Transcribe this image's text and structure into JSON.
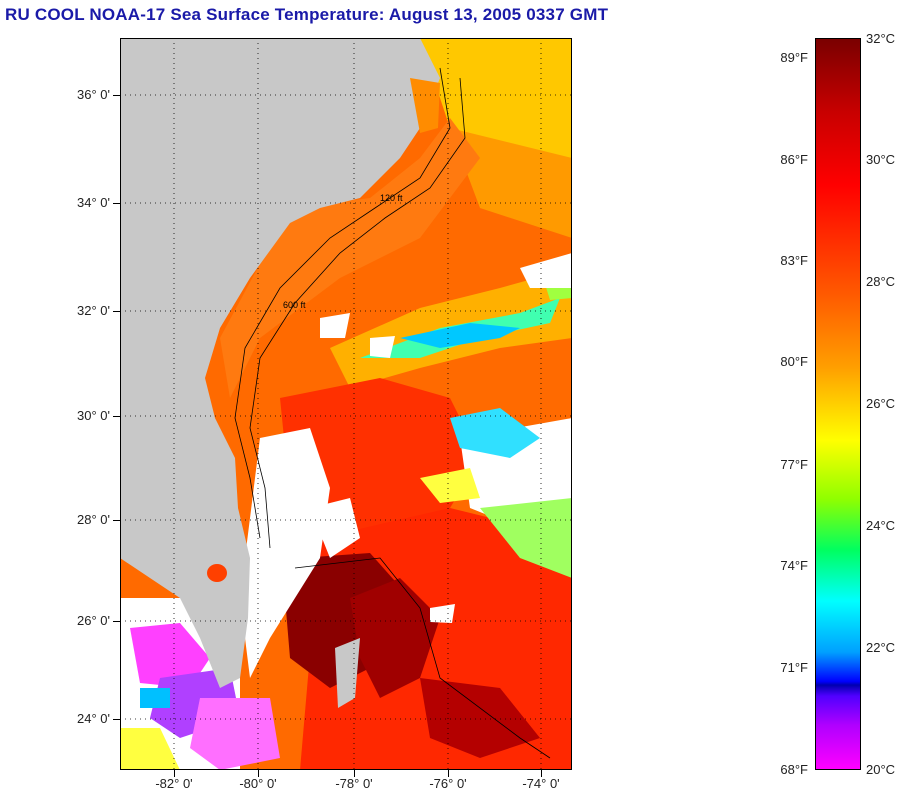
{
  "title": "RU COOL  NOAA-17  Sea Surface Temperature:  August 13, 2005 0337 GMT",
  "map": {
    "latitude_labels": [
      "36° 0'",
      "34° 0'",
      "32° 0'",
      "30° 0'",
      "28° 0'",
      "26° 0'",
      "24° 0'"
    ],
    "longitude_labels": [
      "-82° 0'",
      "-80° 0'",
      "-78° 0'",
      "-76° 0'",
      "-74° 0'"
    ],
    "land_color": "#c8c8c8",
    "cloud_color": "#ffffff",
    "contour_labels": [
      "120 ft",
      "600 ft"
    ]
  },
  "colorbar": {
    "fahrenheit_labels": [
      "89°F",
      "86°F",
      "83°F",
      "80°F",
      "77°F",
      "74°F",
      "71°F",
      "68°F"
    ],
    "celsius_labels": [
      "32°C",
      "30°C",
      "28°C",
      "26°C",
      "24°C",
      "22°C",
      "20°C"
    ]
  }
}
